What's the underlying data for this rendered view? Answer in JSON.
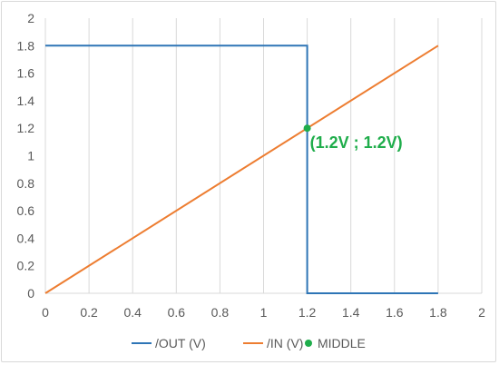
{
  "colors": {
    "out": "#2e75b6",
    "in": "#ed7d31",
    "middle": "#1fad4b",
    "grid": "#d9d9d9",
    "text": "#595959"
  },
  "chart_data": {
    "type": "line",
    "xlim": [
      0,
      2
    ],
    "ylim": [
      0,
      2
    ],
    "x_ticks": [
      "0",
      "0.2",
      "0.4",
      "0.6",
      "0.8",
      "1",
      "1.2",
      "1.4",
      "1.6",
      "1.8",
      "2"
    ],
    "y_ticks": [
      "0",
      "0.2",
      "0.4",
      "0.6",
      "0.8",
      "1",
      "1.2",
      "1.4",
      "1.6",
      "1.8",
      "2"
    ],
    "grid": "vertical",
    "legend_position": "bottom",
    "series": [
      {
        "name": "/OUT (V)",
        "color_key": "out",
        "points": [
          [
            0,
            1.8
          ],
          [
            1.2,
            1.8
          ],
          [
            1.2,
            0
          ],
          [
            1.8,
            0
          ]
        ]
      },
      {
        "name": "/IN (V)",
        "color_key": "in",
        "points": [
          [
            0,
            0
          ],
          [
            1.8,
            1.8
          ]
        ]
      },
      {
        "name": "MIDDLE",
        "color_key": "middle",
        "marker": "circle",
        "points": [
          [
            1.2,
            1.2
          ]
        ]
      }
    ],
    "annotation": {
      "text": "(1.2V ; 1.2V)",
      "x": 1.2,
      "y": 1.2
    }
  },
  "legend": [
    {
      "label": "/OUT (V)",
      "kind": "line",
      "color_key": "out"
    },
    {
      "label": "/IN (V)",
      "kind": "line",
      "color_key": "in"
    },
    {
      "label": "MIDDLE",
      "kind": "marker",
      "color_key": "middle"
    }
  ]
}
